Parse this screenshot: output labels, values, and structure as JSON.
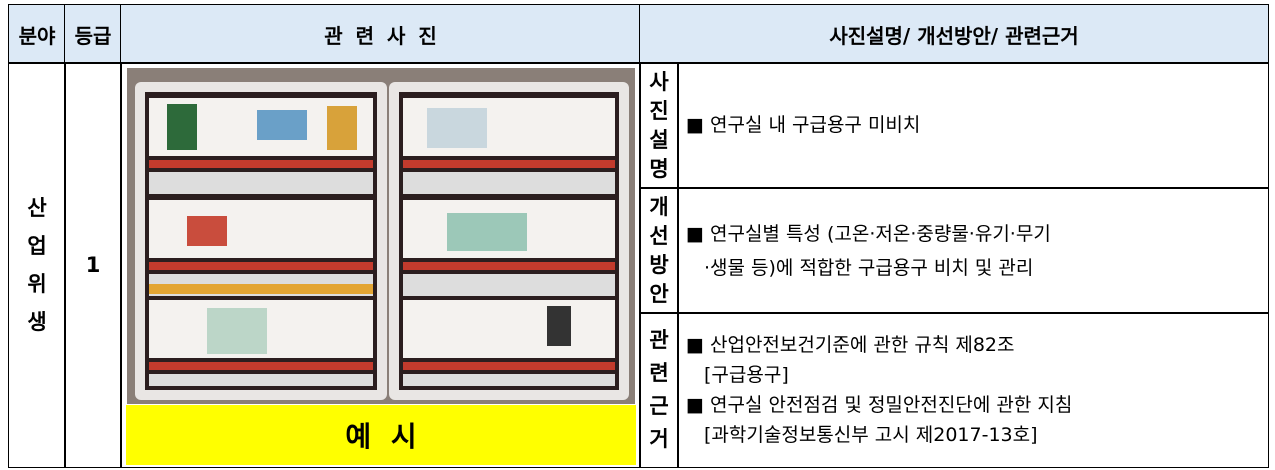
{
  "header": {
    "columns": [
      "분야",
      "등급",
      "관 련 사 진",
      "사진설명/ 개선방안/ 관련근거"
    ]
  },
  "row": {
    "field": "산업위생",
    "grade": "1",
    "photo_caption": "예 시",
    "details": [
      {
        "label": "사진설명",
        "lines": [
          "■ 연구실 내 구급용구 미비치"
        ]
      },
      {
        "label": "개선방안",
        "lines": [
          "■ 연구실별 특성 (고온·저온·중량물·유기·무기",
          "·생물 등)에 적합한 구급용구 비치 및 관리"
        ]
      },
      {
        "label": "관련근거",
        "lines": [
          "■ 산업안전보건기준에 관한 규칙 제82조",
          "[구급용구]",
          "■ 연구실 안전점검 및 정밀안전진단에 관한 지침",
          "[과학기술정보통신부 고시 제2017-13호]"
        ]
      }
    ]
  }
}
